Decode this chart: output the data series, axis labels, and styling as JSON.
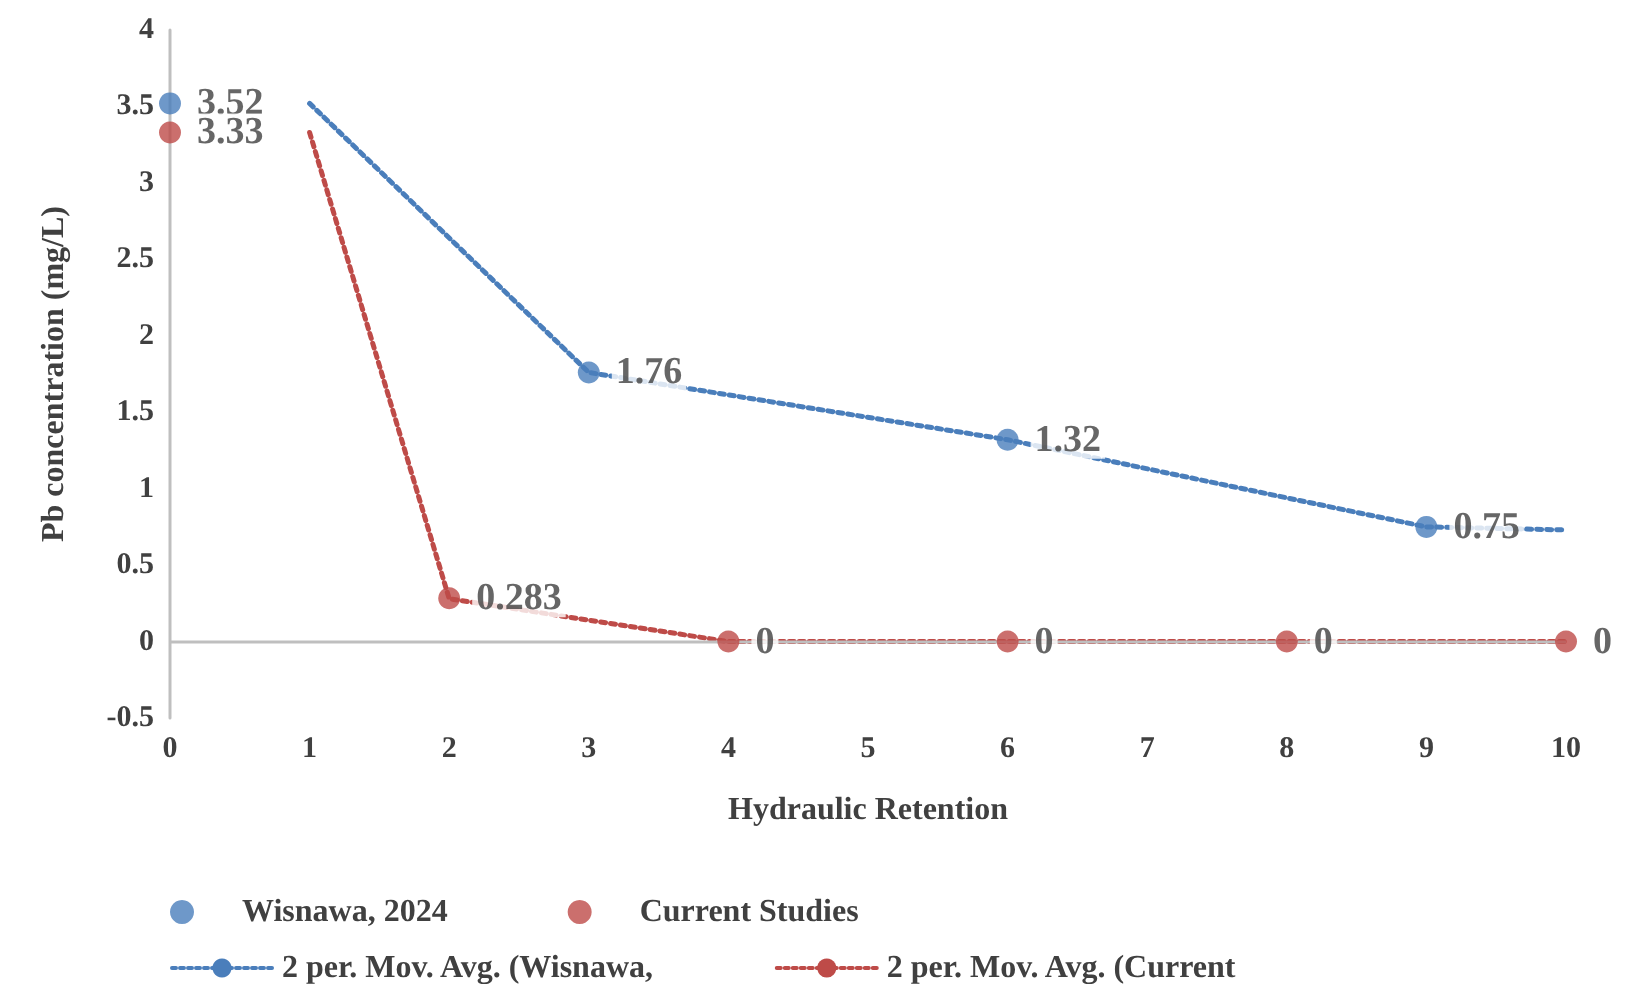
{
  "chart_data": {
    "type": "scatter",
    "xlabel": "Hydraulic Retention",
    "ylabel": "Pb concentration (mg/L)",
    "xlim": [
      0,
      10
    ],
    "xticks": [
      0,
      1,
      2,
      3,
      4,
      5,
      6,
      7,
      8,
      9,
      10
    ],
    "ylim": [
      -0.5,
      4
    ],
    "yticks": [
      -0.5,
      0,
      0.5,
      1,
      1.5,
      2,
      2.5,
      3,
      3.5,
      4
    ],
    "grid": false,
    "legend": "bottom",
    "series": [
      {
        "name": "Wisnawa, 2024",
        "type": "scatter",
        "marker": "circle",
        "data_labels": true,
        "color": "#4a7ebb",
        "x": [
          0,
          3,
          6,
          9
        ],
        "values": [
          3.52,
          1.76,
          1.32,
          0.75
        ]
      },
      {
        "name": "Current Studies",
        "type": "scatter",
        "marker": "circle",
        "data_labels": true,
        "color": "#be4b48",
        "x": [
          0,
          2,
          4,
          6,
          8,
          10
        ],
        "values": [
          3.33,
          0.283,
          0,
          0,
          0,
          0
        ]
      },
      {
        "name": "2 per. Mov. Avg. (Wisnawa,",
        "type": "line",
        "marker": "none",
        "line_style": "dotted",
        "color": "#4a7ebb",
        "x": [
          1,
          3,
          6,
          9,
          10
        ],
        "values": [
          3.52,
          1.76,
          1.32,
          0.75,
          0.73
        ]
      },
      {
        "name": "2 per. Mov. Avg. (Current",
        "type": "line",
        "marker": "none",
        "line_style": "dotted",
        "color": "#be4b48",
        "x": [
          1,
          2,
          4,
          10
        ],
        "values": [
          3.33,
          0.28,
          0,
          0
        ]
      }
    ],
    "ref_lines": [
      {
        "axis": "y",
        "value": 0,
        "color": "#bfbfbf",
        "line_style": "solid"
      }
    ]
  }
}
